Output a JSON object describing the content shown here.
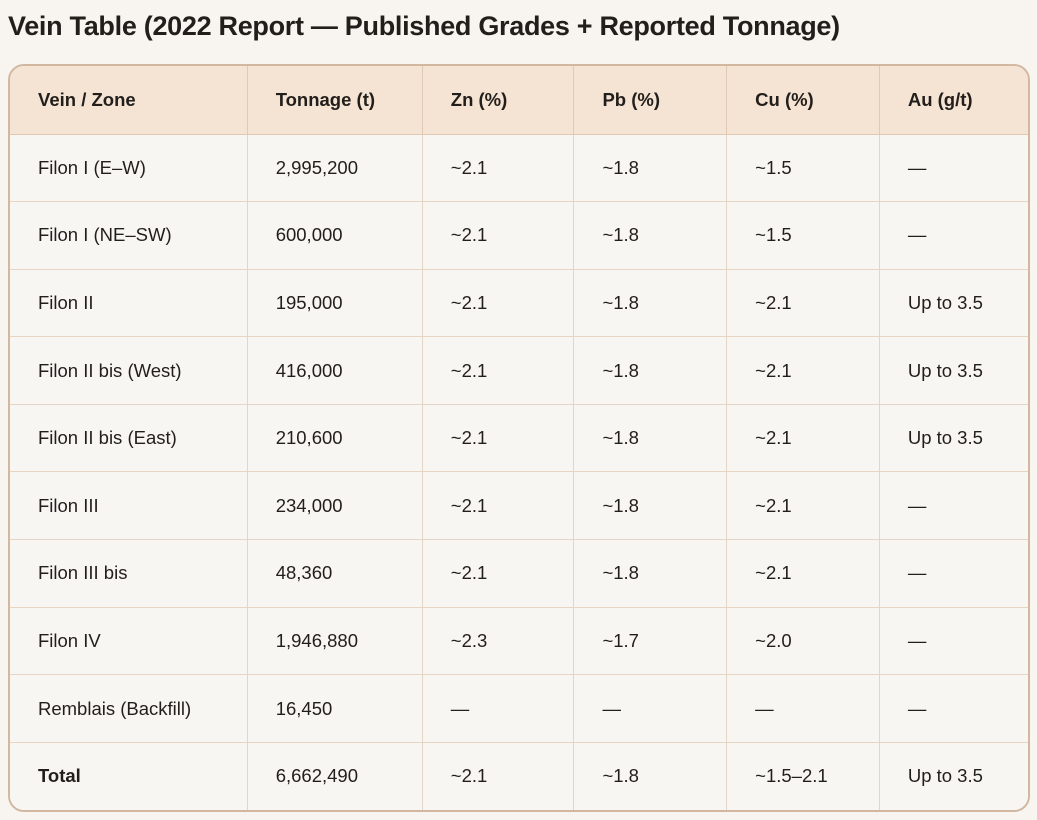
{
  "page": {
    "title": "Vein Table (2022 Report — Published Grades + Reported Tonnage)"
  },
  "table": {
    "columns": [
      "Vein / Zone",
      "Tonnage (t)",
      "Zn (%)",
      "Pb (%)",
      "Cu (%)",
      "Au (g/t)"
    ],
    "rows": [
      {
        "vein": "Filon I (E–W)",
        "tonnage": "2,995,200",
        "zn": "~2.1",
        "pb": "~1.8",
        "cu": "~1.5",
        "au": "—",
        "is_total": false
      },
      {
        "vein": "Filon I (NE–SW)",
        "tonnage": "600,000",
        "zn": "~2.1",
        "pb": "~1.8",
        "cu": "~1.5",
        "au": "—",
        "is_total": false
      },
      {
        "vein": "Filon II",
        "tonnage": "195,000",
        "zn": "~2.1",
        "pb": "~1.8",
        "cu": "~2.1",
        "au": "Up to 3.5",
        "is_total": false
      },
      {
        "vein": "Filon II bis (West)",
        "tonnage": "416,000",
        "zn": "~2.1",
        "pb": "~1.8",
        "cu": "~2.1",
        "au": "Up to 3.5",
        "is_total": false
      },
      {
        "vein": "Filon II bis (East)",
        "tonnage": "210,600",
        "zn": "~2.1",
        "pb": "~1.8",
        "cu": "~2.1",
        "au": "Up to 3.5",
        "is_total": false
      },
      {
        "vein": "Filon III",
        "tonnage": "234,000",
        "zn": "~2.1",
        "pb": "~1.8",
        "cu": "~2.1",
        "au": "—",
        "is_total": false
      },
      {
        "vein": "Filon III bis",
        "tonnage": "48,360",
        "zn": "~2.1",
        "pb": "~1.8",
        "cu": "~2.1",
        "au": "—",
        "is_total": false
      },
      {
        "vein": "Filon IV",
        "tonnage": "1,946,880",
        "zn": "~2.3",
        "pb": "~1.7",
        "cu": "~2.0",
        "au": "—",
        "is_total": false
      },
      {
        "vein": "Remblais (Backfill)",
        "tonnage": "16,450",
        "zn": "—",
        "pb": "—",
        "cu": "—",
        "au": "—",
        "is_total": false
      },
      {
        "vein": "Total",
        "tonnage": "6,662,490",
        "zn": "~2.1",
        "pb": "~1.8",
        "cu": "~1.5–2.1",
        "au": "Up to 3.5",
        "is_total": true
      }
    ]
  },
  "colors": {
    "page_background": "#f8f5f0",
    "header_background": "#f5e3d3",
    "cell_background": "#f7f6f3",
    "outer_border": "#d2b8a0",
    "grid_line": "#e7d5c3",
    "text": "#221e1b"
  },
  "chart_data": {
    "type": "table",
    "title": "Vein Table (2022 Report — Published Grades + Reported Tonnage)",
    "columns": [
      "Vein / Zone",
      "Tonnage (t)",
      "Zn (%)",
      "Pb (%)",
      "Cu (%)",
      "Au (g/t)"
    ],
    "rows": [
      [
        "Filon I (E–W)",
        2995200,
        "~2.1",
        "~1.8",
        "~1.5",
        null
      ],
      [
        "Filon I (NE–SW)",
        600000,
        "~2.1",
        "~1.8",
        "~1.5",
        null
      ],
      [
        "Filon II",
        195000,
        "~2.1",
        "~1.8",
        "~2.1",
        "Up to 3.5"
      ],
      [
        "Filon II bis (West)",
        416000,
        "~2.1",
        "~1.8",
        "~2.1",
        "Up to 3.5"
      ],
      [
        "Filon II bis (East)",
        210600,
        "~2.1",
        "~1.8",
        "~2.1",
        "Up to 3.5"
      ],
      [
        "Filon III",
        234000,
        "~2.1",
        "~1.8",
        "~2.1",
        null
      ],
      [
        "Filon III bis",
        48360,
        "~2.1",
        "~1.8",
        "~2.1",
        null
      ],
      [
        "Filon IV",
        1946880,
        "~2.3",
        "~1.7",
        "~2.0",
        null
      ],
      [
        "Remblais (Backfill)",
        16450,
        null,
        null,
        null,
        null
      ],
      [
        "Total",
        6662490,
        "~2.1",
        "~1.8",
        "~1.5–2.1",
        "Up to 3.5"
      ]
    ],
    "missing_value_glyph": "—",
    "total_row_index": 9
  }
}
